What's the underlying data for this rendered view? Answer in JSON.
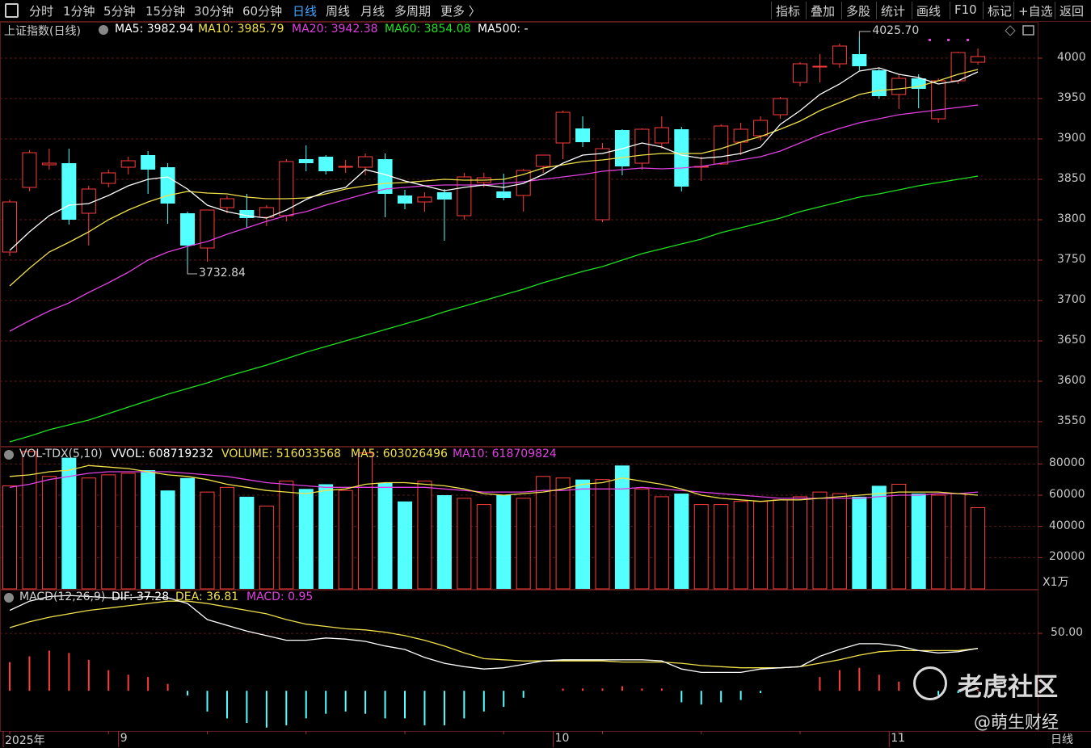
{
  "toolbar": {
    "left": [
      "分时",
      "1分钟",
      "5分钟",
      "15分钟",
      "30分钟",
      "60分钟",
      "日线",
      "周线",
      "月线",
      "多周期",
      "更多 〉"
    ],
    "active": "日线",
    "right": [
      "指标",
      "叠加",
      "多股",
      "统计",
      "画线",
      "F10",
      "标记",
      "+自选",
      "返回"
    ]
  },
  "main_panel": {
    "title": "上证指数(日线)",
    "indicators": [
      {
        "label": "MA5: 3982.94",
        "color": "#ffffff"
      },
      {
        "label": "MA10: 3985.79",
        "color": "#f0e04a"
      },
      {
        "label": "MA20: 3942.38",
        "color": "#e040e0"
      },
      {
        "label": "MA60: 3854.08",
        "color": "#20e020"
      },
      {
        "label": "MA500: -",
        "color": "#ffffff"
      }
    ],
    "yticks": [
      "4000",
      "3950",
      "3900",
      "3850",
      "3800",
      "3750",
      "3700",
      "3650",
      "3600",
      "3550"
    ],
    "high_label": "4025.70",
    "low_label": "3732.84"
  },
  "volume_panel": {
    "title": "VOL-TDX(5,10)",
    "indicators": [
      {
        "label": "VVOL: 608719232",
        "color": "#ffffff"
      },
      {
        "label": "VOLUME: 516033568",
        "color": "#f0e04a"
      },
      {
        "label": "MA5: 603026496",
        "color": "#f0e04a"
      },
      {
        "label": "MA10: 618709824",
        "color": "#e040e0"
      }
    ],
    "yticks": [
      "80000",
      "60000",
      "40000",
      "20000"
    ],
    "unit": "X1万"
  },
  "macd_panel": {
    "title": "MACD(12,26,9)",
    "indicators": [
      {
        "label": "DIF: 37.28",
        "color": "#ffffff"
      },
      {
        "label": "DEA: 36.81",
        "color": "#f0e04a"
      },
      {
        "label": "MACD: 0.95",
        "color": "#e040e0"
      }
    ],
    "yticks": [
      "50.00"
    ]
  },
  "xaxis": {
    "labels": [
      {
        "text": "2025年",
        "index": 0
      },
      {
        "text": "9",
        "index": 6
      },
      {
        "text": "10",
        "index": 28
      },
      {
        "text": "11",
        "index": 45
      }
    ],
    "period": "日线"
  },
  "watermark": {
    "logo_text": "老虎社区",
    "author": "@萌生财经"
  },
  "colors": {
    "up": "#ff3c3c",
    "down": "#54ffff",
    "ma5": "#ffffff",
    "ma10": "#f0e04a",
    "ma20": "#e040e0",
    "ma60": "#20e020",
    "grid": "#5a1a1a",
    "axis_text": "#c8c8c8"
  },
  "chart_data": {
    "type": "candlestick",
    "price_ylim": [
      3520,
      4045
    ],
    "volume_ylim": [
      0,
      90000
    ],
    "volume_unit": "万",
    "macd_ylim": [
      -35,
      88
    ],
    "candles": [
      {
        "o": 3760,
        "h": 3825,
        "l": 3755,
        "c": 3822
      },
      {
        "o": 3840,
        "h": 3886,
        "l": 3835,
        "c": 3883
      },
      {
        "o": 3868,
        "h": 3888,
        "l": 3862,
        "c": 3870
      },
      {
        "o": 3870,
        "h": 3888,
        "l": 3794,
        "c": 3800
      },
      {
        "o": 3808,
        "h": 3842,
        "l": 3768,
        "c": 3838
      },
      {
        "o": 3845,
        "h": 3862,
        "l": 3840,
        "c": 3858
      },
      {
        "o": 3865,
        "h": 3878,
        "l": 3856,
        "c": 3873
      },
      {
        "o": 3880,
        "h": 3885,
        "l": 3832,
        "c": 3862
      },
      {
        "o": 3865,
        "h": 3870,
        "l": 3795,
        "c": 3820
      },
      {
        "o": 3808,
        "h": 3810,
        "l": 3733,
        "c": 3768
      },
      {
        "o": 3765,
        "h": 3812,
        "l": 3748,
        "c": 3812
      },
      {
        "o": 3815,
        "h": 3830,
        "l": 3808,
        "c": 3826
      },
      {
        "o": 3812,
        "h": 3832,
        "l": 3790,
        "c": 3802
      },
      {
        "o": 3803,
        "h": 3818,
        "l": 3792,
        "c": 3815
      },
      {
        "o": 3805,
        "h": 3875,
        "l": 3798,
        "c": 3872
      },
      {
        "o": 3875,
        "h": 3892,
        "l": 3860,
        "c": 3870
      },
      {
        "o": 3878,
        "h": 3880,
        "l": 3856,
        "c": 3860
      },
      {
        "o": 3865,
        "h": 3874,
        "l": 3858,
        "c": 3866
      },
      {
        "o": 3865,
        "h": 3882,
        "l": 3855,
        "c": 3878
      },
      {
        "o": 3875,
        "h": 3882,
        "l": 3803,
        "c": 3832
      },
      {
        "o": 3830,
        "h": 3837,
        "l": 3813,
        "c": 3820
      },
      {
        "o": 3822,
        "h": 3834,
        "l": 3810,
        "c": 3828
      },
      {
        "o": 3834,
        "h": 3838,
        "l": 3774,
        "c": 3825
      },
      {
        "o": 3805,
        "h": 3858,
        "l": 3800,
        "c": 3853
      },
      {
        "o": 3846,
        "h": 3858,
        "l": 3840,
        "c": 3852
      },
      {
        "o": 3835,
        "h": 3857,
        "l": 3824,
        "c": 3827
      },
      {
        "o": 3830,
        "h": 3863,
        "l": 3810,
        "c": 3861
      },
      {
        "o": 3866,
        "h": 3878,
        "l": 3858,
        "c": 3880
      },
      {
        "o": 3895,
        "h": 3935,
        "l": 3875,
        "c": 3933
      },
      {
        "o": 3913,
        "h": 3928,
        "l": 3890,
        "c": 3896
      },
      {
        "o": 3800,
        "h": 3895,
        "l": 3797,
        "c": 3888
      },
      {
        "o": 3911,
        "h": 3912,
        "l": 3855,
        "c": 3866
      },
      {
        "o": 3870,
        "h": 3913,
        "l": 3862,
        "c": 3912
      },
      {
        "o": 3895,
        "h": 3928,
        "l": 3888,
        "c": 3914
      },
      {
        "o": 3912,
        "h": 3915,
        "l": 3835,
        "c": 3841
      },
      {
        "o": 3865,
        "h": 3878,
        "l": 3848,
        "c": 3866
      },
      {
        "o": 3869,
        "h": 3918,
        "l": 3868,
        "c": 3916
      },
      {
        "o": 3896,
        "h": 3920,
        "l": 3880,
        "c": 3912
      },
      {
        "o": 3904,
        "h": 3928,
        "l": 3898,
        "c": 3923
      },
      {
        "o": 3930,
        "h": 3952,
        "l": 3925,
        "c": 3950
      },
      {
        "o": 3970,
        "h": 3995,
        "l": 3965,
        "c": 3993
      },
      {
        "o": 3990,
        "h": 4005,
        "l": 3970,
        "c": 3990
      },
      {
        "o": 3993,
        "h": 4018,
        "l": 3988,
        "c": 4015
      },
      {
        "o": 4005,
        "h": 4026,
        "l": 3985,
        "c": 3990
      },
      {
        "o": 3985,
        "h": 3987,
        "l": 3950,
        "c": 3953
      },
      {
        "o": 3955,
        "h": 3980,
        "l": 3937,
        "c": 3975
      },
      {
        "o": 3975,
        "h": 3980,
        "l": 3938,
        "c": 3962
      },
      {
        "o": 3925,
        "h": 3975,
        "l": 3920,
        "c": 3972
      },
      {
        "o": 3972,
        "h": 4008,
        "l": 3968,
        "c": 4007
      },
      {
        "o": 3995,
        "h": 4012,
        "l": 3992,
        "c": 4002
      }
    ],
    "ma5": [
      3762,
      3785,
      3805,
      3818,
      3820,
      3830,
      3842,
      3850,
      3853,
      3838,
      3818,
      3810,
      3805,
      3802,
      3812,
      3825,
      3835,
      3840,
      3862,
      3856,
      3848,
      3842,
      3836,
      3840,
      3843,
      3840,
      3845,
      3856,
      3870,
      3880,
      3882,
      3888,
      3895,
      3890,
      3880,
      3876,
      3878,
      3882,
      3890,
      3918,
      3935,
      3955,
      3968,
      3984,
      3988,
      3980,
      3976,
      3968,
      3972,
      3983
    ],
    "ma10": [
      3718,
      3740,
      3760,
      3772,
      3785,
      3800,
      3812,
      3822,
      3830,
      3835,
      3833,
      3832,
      3828,
      3826,
      3826,
      3827,
      3832,
      3838,
      3842,
      3845,
      3846,
      3848,
      3850,
      3849,
      3849,
      3850,
      3856,
      3864,
      3868,
      3872,
      3874,
      3877,
      3880,
      3882,
      3882,
      3882,
      3888,
      3896,
      3903,
      3912,
      3922,
      3935,
      3945,
      3955,
      3960,
      3962,
      3965,
      3972,
      3980,
      3986
    ],
    "ma20": [
      3662,
      3675,
      3687,
      3697,
      3710,
      3722,
      3735,
      3750,
      3760,
      3767,
      3773,
      3782,
      3790,
      3798,
      3805,
      3810,
      3818,
      3825,
      3832,
      3838,
      3840,
      3842,
      3843,
      3843,
      3843,
      3845,
      3847,
      3850,
      3853,
      3856,
      3860,
      3862,
      3864,
      3863,
      3864,
      3866,
      3870,
      3874,
      3878,
      3885,
      3895,
      3905,
      3913,
      3920,
      3925,
      3930,
      3933,
      3936,
      3939,
      3942
    ],
    "ma60": [
      3525,
      3532,
      3540,
      3546,
      3552,
      3560,
      3568,
      3576,
      3584,
      3591,
      3598,
      3606,
      3613,
      3620,
      3628,
      3636,
      3643,
      3650,
      3657,
      3664,
      3671,
      3678,
      3686,
      3693,
      3700,
      3707,
      3714,
      3722,
      3729,
      3736,
      3742,
      3750,
      3758,
      3764,
      3770,
      3776,
      3784,
      3790,
      3796,
      3802,
      3810,
      3816,
      3822,
      3828,
      3832,
      3837,
      3842,
      3846,
      3850,
      3854
    ],
    "volume": [
      66000,
      88000,
      72000,
      84000,
      71000,
      73000,
      74000,
      76000,
      63000,
      71000,
      62000,
      65000,
      59000,
      53000,
      69000,
      64000,
      67000,
      63000,
      87000,
      68000,
      56000,
      69000,
      60000,
      58000,
      54000,
      60000,
      58000,
      72000,
      71000,
      70000,
      70000,
      79000,
      64000,
      59000,
      61000,
      54000,
      54000,
      56000,
      56000,
      57000,
      59000,
      62000,
      61000,
      59000,
      66000,
      67000,
      61000,
      60000,
      61000,
      52000
    ],
    "vol_ma5": [
      72000,
      73000,
      75000,
      76000,
      79000,
      78000,
      77000,
      75000,
      73000,
      72000,
      70000,
      67000,
      65000,
      63000,
      62000,
      61000,
      63000,
      64000,
      67000,
      68000,
      68000,
      67000,
      66000,
      64000,
      61000,
      60000,
      61000,
      62000,
      64000,
      67000,
      68000,
      71000,
      69000,
      67000,
      64000,
      60000,
      58000,
      57000,
      56000,
      57000,
      57000,
      58000,
      59000,
      60000,
      61000,
      62000,
      62000,
      62000,
      61000,
      60000
    ],
    "vol_ma10": [
      65000,
      67000,
      70000,
      72000,
      74000,
      75000,
      75000,
      75000,
      75000,
      74000,
      73000,
      72000,
      70000,
      68000,
      67000,
      66000,
      65000,
      65000,
      65000,
      65000,
      65000,
      65000,
      64000,
      63000,
      62000,
      62000,
      62000,
      63000,
      63000,
      64000,
      64000,
      64000,
      65000,
      64000,
      63000,
      62000,
      61000,
      60000,
      59000,
      58000,
      58000,
      58000,
      58000,
      58000,
      59000,
      60000,
      60000,
      61000,
      61000,
      62000
    ],
    "dif": [
      70,
      78,
      82,
      83,
      82,
      81,
      81,
      82,
      81,
      76,
      62,
      57,
      52,
      48,
      44,
      44,
      46,
      45,
      43,
      39,
      36,
      29,
      24,
      21,
      19,
      20,
      23,
      26,
      27,
      27,
      27,
      27,
      27,
      26,
      19,
      16,
      16,
      16,
      19,
      20,
      21,
      30,
      36,
      41,
      41,
      39,
      35,
      33,
      34,
      37
    ],
    "dea": [
      55,
      60,
      64,
      67,
      70,
      72,
      74,
      76,
      78,
      78,
      76,
      73,
      70,
      67,
      62,
      58,
      56,
      54,
      53,
      51,
      48,
      44,
      39,
      33,
      28,
      27,
      26,
      26,
      26,
      26,
      26,
      25,
      25,
      25,
      24,
      22,
      21,
      20,
      20,
      20,
      21,
      24,
      27,
      31,
      34,
      35,
      35,
      35,
      35,
      36.8
    ],
    "macd": [
      25,
      30,
      35,
      33,
      27,
      18,
      14,
      12,
      6,
      -4,
      -18,
      -24,
      -28,
      -32,
      -30,
      -24,
      -20,
      -18,
      -20,
      -24,
      -24,
      -30,
      -30,
      -24,
      -18,
      -14,
      -6,
      0,
      2,
      2,
      2,
      4,
      2,
      2,
      -10,
      -12,
      -10,
      -8,
      -2,
      0,
      0,
      12,
      18,
      20,
      14,
      8,
      0,
      -4,
      -2,
      1
    ]
  }
}
